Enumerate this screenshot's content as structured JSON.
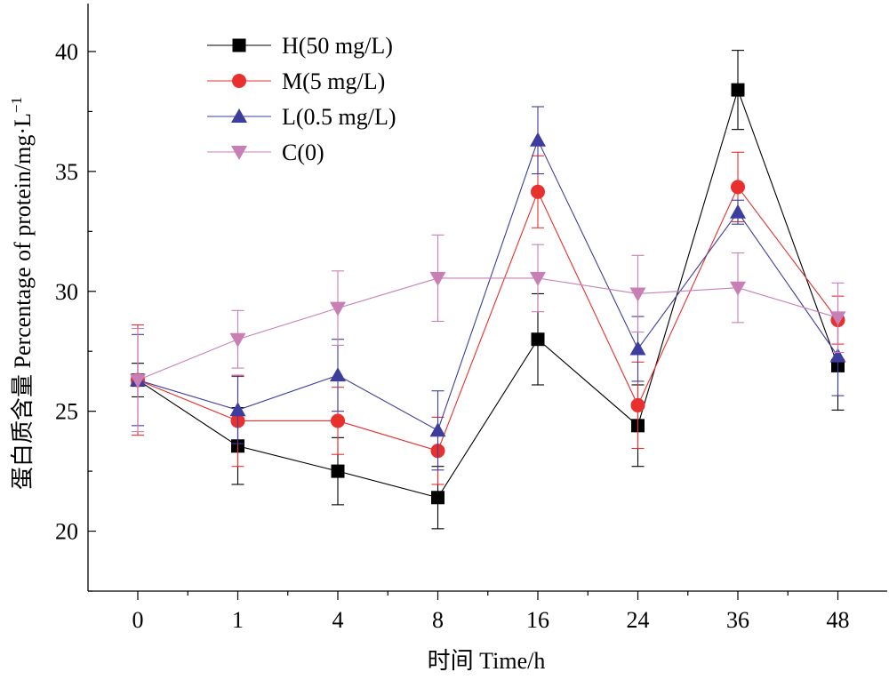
{
  "chart_data": {
    "type": "line",
    "title": "",
    "xlabel": "时间 Time/h",
    "ylabel_main": "蛋白质含量 Percentage of protein/mg·L",
    "ylabel_sup": "−1",
    "x_categories": [
      "0",
      "1",
      "4",
      "8",
      "16",
      "24",
      "36",
      "48"
    ],
    "ylim": [
      17.5,
      42
    ],
    "y_ticks": [
      20,
      25,
      30,
      35,
      40
    ],
    "grid": false,
    "legend_position": "top-left",
    "series": [
      {
        "name": "H(50 mg/L)",
        "color": "#000000",
        "marker": "square",
        "values": [
          26.3,
          23.55,
          22.5,
          21.4,
          28.0,
          24.4,
          38.4,
          26.9
        ],
        "errors": [
          0.7,
          1.6,
          1.4,
          1.3,
          1.9,
          1.7,
          1.65,
          1.85
        ]
      },
      {
        "name": "M(5 mg/L)",
        "color": "#e8302e",
        "marker": "circle",
        "values": [
          26.3,
          24.6,
          24.6,
          23.35,
          34.15,
          25.25,
          34.35,
          28.8
        ],
        "errors": [
          2.3,
          1.9,
          1.4,
          1.4,
          1.5,
          1.8,
          1.45,
          1.0
        ]
      },
      {
        "name": "L(0.5 mg/L)",
        "color": "#3d3d9e",
        "marker": "triangle-up",
        "values": [
          26.3,
          25.05,
          26.5,
          24.2,
          36.3,
          27.6,
          33.3,
          27.3
        ],
        "errors": [
          1.9,
          1.4,
          1.5,
          1.65,
          1.4,
          1.35,
          0.5,
          1.65
        ]
      },
      {
        "name": "C(0)",
        "color": "#c77fb5",
        "marker": "triangle-down",
        "values": [
          26.3,
          28.0,
          29.3,
          30.55,
          30.55,
          29.9,
          30.15,
          28.9
        ],
        "errors": [
          2.15,
          1.2,
          1.55,
          1.8,
          1.4,
          1.6,
          1.45,
          1.45
        ]
      }
    ]
  }
}
